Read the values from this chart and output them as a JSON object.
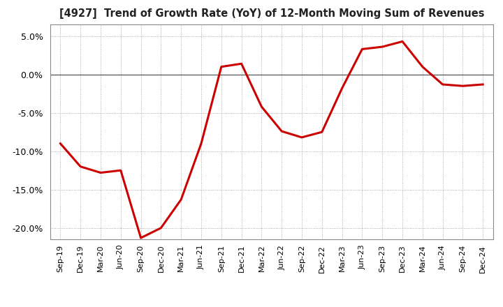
{
  "title": "[4927]  Trend of Growth Rate (YoY) of 12-Month Moving Sum of Revenues",
  "line_color": "#cc0000",
  "line_width": 2.2,
  "background_color": "#ffffff",
  "grid_color": "#999999",
  "zero_line_color": "#555555",
  "border_color": "#888888",
  "ylim": [
    -0.215,
    0.065
  ],
  "yticks": [
    0.05,
    0.0,
    -0.05,
    -0.1,
    -0.15,
    -0.2
  ],
  "x_labels": [
    "Sep-19",
    "Dec-19",
    "Mar-20",
    "Jun-20",
    "Sep-20",
    "Dec-20",
    "Mar-21",
    "Jun-21",
    "Sep-21",
    "Dec-21",
    "Mar-22",
    "Jun-22",
    "Sep-22",
    "Dec-22",
    "Mar-23",
    "Jun-23",
    "Sep-23",
    "Dec-23",
    "Mar-24",
    "Jun-24",
    "Sep-24",
    "Dec-24"
  ],
  "values": [
    -0.09,
    -0.12,
    -0.128,
    -0.125,
    -0.213,
    -0.2,
    -0.163,
    -0.09,
    0.01,
    0.014,
    -0.042,
    -0.074,
    -0.082,
    -0.075,
    -0.018,
    0.033,
    0.036,
    0.043,
    0.01,
    -0.013,
    -0.015,
    -0.013
  ]
}
